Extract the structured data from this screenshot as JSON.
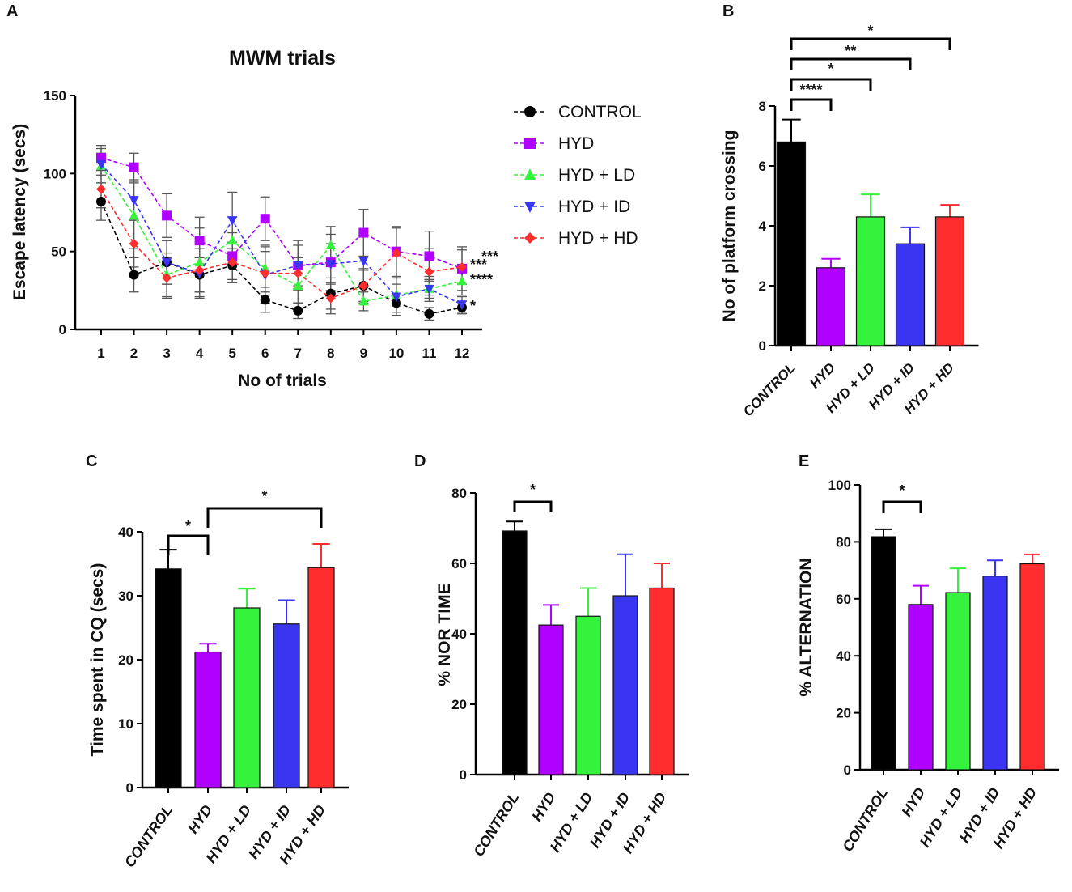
{
  "colors": {
    "CONTROL": "#000000",
    "HYD": "#b000ff",
    "HYD + LD": "#35f23c",
    "HYD + ID": "#3a35f0",
    "HYD + HD": "#ff2d2d"
  },
  "chart_data": [
    {
      "panel": "A",
      "type": "line",
      "title": "MWM trials",
      "xlabel": "No of trials",
      "ylabel": "Escape latency (secs)",
      "ylim": [
        0,
        150
      ],
      "yticks": [
        0,
        50,
        100,
        150
      ],
      "x": [
        1,
        2,
        3,
        4,
        5,
        6,
        7,
        8,
        9,
        10,
        11,
        12
      ],
      "series": [
        {
          "name": "CONTROL",
          "marker": "circle",
          "color": "#000000",
          "values": [
            82,
            35,
            43,
            35,
            41,
            19,
            12,
            23,
            28,
            17,
            10,
            14
          ],
          "errors": [
            12,
            11,
            14,
            11,
            11,
            8,
            5,
            10,
            11,
            6,
            4,
            4
          ]
        },
        {
          "name": "HYD",
          "marker": "square",
          "color": "#b000ff",
          "values": [
            110,
            104,
            73,
            57,
            47,
            71,
            41,
            43,
            62,
            50,
            47,
            39
          ],
          "errors": [
            8,
            9,
            14,
            15,
            15,
            14,
            16,
            18,
            15,
            16,
            16,
            14
          ]
        },
        {
          "name": "HYD + LD",
          "marker": "triangle-up",
          "color": "#35f23c",
          "values": [
            105,
            73,
            35,
            43,
            57,
            39,
            28,
            54,
            18,
            22,
            26,
            31
          ],
          "errors": [
            11,
            21,
            14,
            22,
            15,
            15,
            11,
            12,
            6,
            7,
            6,
            9
          ]
        },
        {
          "name": "HYD + ID",
          "marker": "triangle-down",
          "color": "#3a35f0",
          "values": [
            106,
            83,
            43,
            36,
            70,
            35,
            41,
            42,
            44,
            21,
            26,
            16
          ],
          "errors": [
            7,
            13,
            14,
            16,
            18,
            18,
            13,
            13,
            16,
            12,
            8,
            5
          ]
        },
        {
          "name": "HYD + HD",
          "marker": "diamond",
          "color": "#ff2d2d",
          "values": [
            90,
            55,
            33,
            38,
            43,
            36,
            36,
            20,
            28,
            49,
            37,
            40
          ],
          "errors": [
            12,
            15,
            13,
            14,
            13,
            14,
            10,
            10,
            10,
            16,
            15,
            11
          ]
        }
      ],
      "end_annotations": [
        "*",
        "****",
        "***",
        "***"
      ],
      "legend_location": "right"
    },
    {
      "panel": "B",
      "type": "bar",
      "title": "",
      "xlabel": "",
      "ylabel": "No of platform crossing",
      "ylim": [
        0,
        8
      ],
      "yticks": [
        0,
        2,
        4,
        6,
        8
      ],
      "categories": [
        "CONTROL",
        "HYD",
        "HYD + LD",
        "HYD + ID",
        "HYD + HD"
      ],
      "values": [
        6.8,
        2.6,
        4.3,
        3.4,
        4.3
      ],
      "errors": [
        0.75,
        0.3,
        0.75,
        0.55,
        0.4
      ],
      "significance": [
        {
          "from": "CONTROL",
          "to": "HYD",
          "label": "****"
        },
        {
          "from": "CONTROL",
          "to": "HYD + LD",
          "label": "*"
        },
        {
          "from": "CONTROL",
          "to": "HYD + ID",
          "label": "**"
        },
        {
          "from": "CONTROL",
          "to": "HYD + HD",
          "label": "*"
        }
      ]
    },
    {
      "panel": "C",
      "type": "bar",
      "title": "",
      "xlabel": "",
      "ylabel": "Time spent in CQ (secs)",
      "ylim": [
        0,
        40
      ],
      "yticks": [
        0,
        10,
        20,
        30,
        40
      ],
      "categories": [
        "CONTROL",
        "HYD",
        "HYD + LD",
        "HYD + ID",
        "HYD + HD"
      ],
      "values": [
        34.2,
        21.2,
        28.1,
        25.6,
        34.4
      ],
      "errors": [
        3.0,
        1.3,
        3.0,
        3.7,
        3.7
      ],
      "significance": [
        {
          "from": "CONTROL",
          "to": "HYD",
          "label": "*"
        },
        {
          "from": "HYD",
          "to": "HYD + HD",
          "label": "*"
        }
      ]
    },
    {
      "panel": "D",
      "type": "bar",
      "title": "",
      "xlabel": "",
      "ylabel": "% NOR TIME",
      "ylim": [
        0,
        80
      ],
      "yticks": [
        0,
        20,
        40,
        60,
        80
      ],
      "categories": [
        "CONTROL",
        "HYD",
        "HYD + LD",
        "HYD + ID",
        "HYD + HD"
      ],
      "values": [
        69.2,
        42.5,
        45.0,
        50.8,
        53.0
      ],
      "errors": [
        2.7,
        5.7,
        8.0,
        11.8,
        7.0
      ],
      "significance": [
        {
          "from": "CONTROL",
          "to": "HYD",
          "label": "*"
        }
      ]
    },
    {
      "panel": "E",
      "type": "bar",
      "title": "",
      "xlabel": "",
      "ylabel": "% ALTERNATION",
      "ylim": [
        0,
        100
      ],
      "yticks": [
        0,
        20,
        40,
        60,
        80,
        100
      ],
      "categories": [
        "CONTROL",
        "HYD",
        "HYD + LD",
        "HYD + ID",
        "HYD + HD"
      ],
      "values": [
        81.8,
        58.0,
        62.2,
        68.0,
        72.3
      ],
      "errors": [
        2.6,
        6.6,
        8.5,
        5.5,
        3.3
      ],
      "significance": [
        {
          "from": "CONTROL",
          "to": "HYD",
          "label": "*"
        }
      ]
    }
  ]
}
